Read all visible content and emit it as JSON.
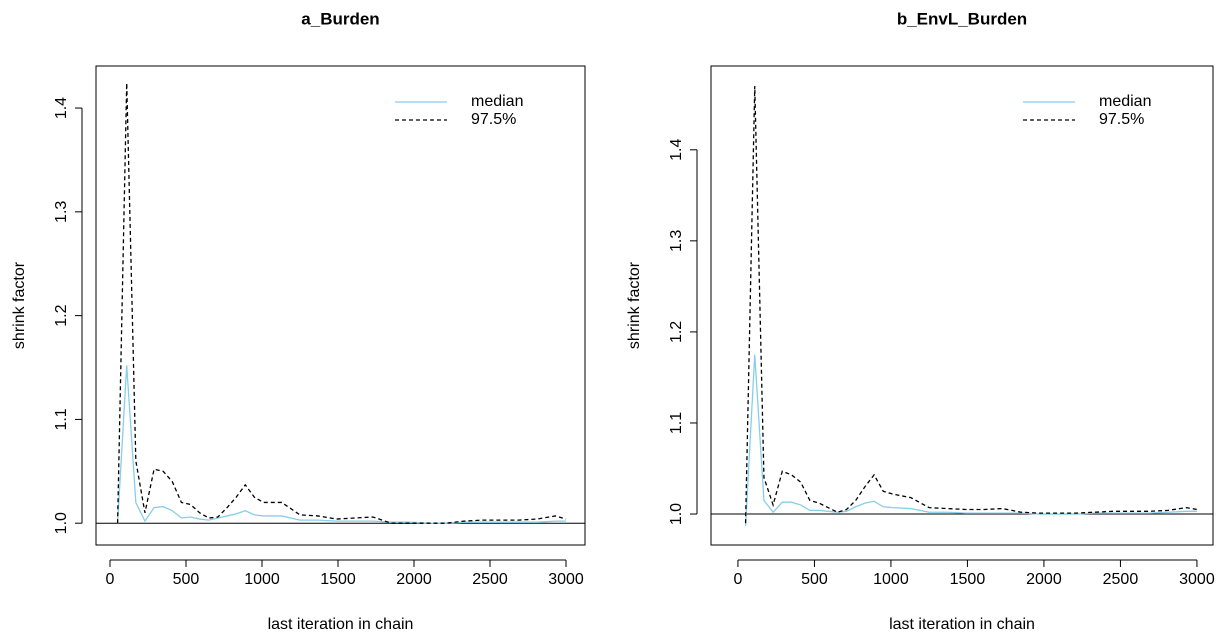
{
  "chart_data": [
    {
      "type": "line",
      "title": "a_Burden",
      "x_label": "last iteration in chain",
      "y_label": "shrink factor",
      "x": [
        50,
        110,
        170,
        230,
        290,
        350,
        410,
        470,
        530,
        590,
        650,
        710,
        770,
        830,
        890,
        950,
        1010,
        1130,
        1250,
        1370,
        1490,
        1610,
        1730,
        1850,
        1970,
        2090,
        2210,
        2330,
        2450,
        2570,
        2690,
        2810,
        2930,
        3000
      ],
      "series": [
        {
          "name": "median",
          "color": "#87ceeb",
          "dashed": false,
          "values": [
            1.0,
            1.152,
            1.02,
            1.002,
            1.015,
            1.016,
            1.012,
            1.005,
            1.006,
            1.004,
            1.003,
            1.005,
            1.007,
            1.009,
            1.012,
            1.008,
            1.007,
            1.007,
            1.003,
            1.003,
            1.002,
            1.002,
            1.002,
            1.001,
            1.001,
            1.0,
            1.0,
            1.001,
            1.001,
            1.001,
            1.001,
            1.001,
            1.002,
            1.002
          ]
        },
        {
          "name": "97.5%",
          "color": "#000000",
          "dashed": true,
          "values": [
            1.0,
            1.424,
            1.06,
            1.01,
            1.052,
            1.05,
            1.04,
            1.02,
            1.018,
            1.01,
            1.005,
            1.006,
            1.015,
            1.025,
            1.037,
            1.025,
            1.02,
            1.02,
            1.008,
            1.007,
            1.004,
            1.005,
            1.006,
            1.0,
            1.0,
            1.0,
            1.0,
            1.002,
            1.003,
            1.003,
            1.003,
            1.004,
            1.007,
            1.004
          ]
        }
      ],
      "hline": 1,
      "xlim": [
        -92,
        3125
      ],
      "ylim": [
        0.979,
        1.4405
      ],
      "xticks": [
        0,
        500,
        1000,
        1500,
        2000,
        2500,
        3000
      ],
      "yticks": [
        {
          "value": 1,
          "label": "1.0"
        },
        1.1,
        1.2,
        1.3,
        1.4
      ],
      "legend": "topright"
    },
    {
      "type": "line",
      "title": "b_EnvL_Burden",
      "x_label": "last iteration in chain",
      "y_label": "shrink factor",
      "x": [
        50,
        110,
        170,
        230,
        290,
        350,
        410,
        470,
        530,
        590,
        650,
        710,
        770,
        830,
        890,
        950,
        1010,
        1130,
        1250,
        1370,
        1490,
        1610,
        1730,
        1850,
        1970,
        2090,
        2210,
        2330,
        2450,
        2570,
        2690,
        2810,
        2930,
        3000
      ],
      "series": [
        {
          "name": "median",
          "color": "#87ceeb",
          "dashed": false,
          "values": [
            0.987,
            1.175,
            1.015,
            1.002,
            1.013,
            1.013,
            1.01,
            1.004,
            1.004,
            1.003,
            1.002,
            1.003,
            1.008,
            1.012,
            1.014,
            1.008,
            1.007,
            1.006,
            1.002,
            1.002,
            1.001,
            1.001,
            1.001,
            1.001,
            1.0,
            1.0,
            1.0,
            1.001,
            1.001,
            1.001,
            1.001,
            1.002,
            1.003,
            1.003
          ]
        },
        {
          "name": "97.5%",
          "color": "#000000",
          "dashed": true,
          "values": [
            0.99,
            1.47,
            1.04,
            1.01,
            1.047,
            1.043,
            1.035,
            1.015,
            1.012,
            1.007,
            1.002,
            1.005,
            1.015,
            1.03,
            1.043,
            1.025,
            1.022,
            1.018,
            1.007,
            1.006,
            1.005,
            1.005,
            1.006,
            1.002,
            1.001,
            1.001,
            1.001,
            1.002,
            1.003,
            1.003,
            1.003,
            1.004,
            1.007,
            1.005
          ]
        }
      ],
      "hline": 1,
      "xlim": [
        -176,
        3105
      ],
      "ylim": [
        0.966,
        1.492
      ],
      "xticks": [
        0,
        500,
        1000,
        1500,
        2000,
        2500,
        3000
      ],
      "yticks": [
        {
          "value": 1,
          "label": "1.0"
        },
        1.1,
        1.2,
        1.3,
        1.4
      ],
      "legend": "topright"
    }
  ]
}
